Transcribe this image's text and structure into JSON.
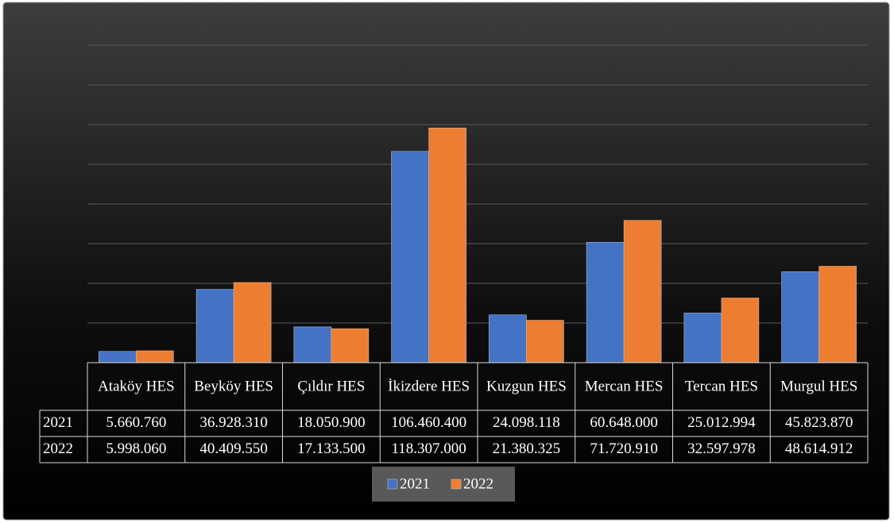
{
  "chart_data": {
    "type": "bar",
    "categories": [
      "Ataköy HES",
      "Beyköy HES",
      "Çıldır HES",
      "İkizdere HES",
      "Kuzgun HES",
      "Mercan HES",
      "Tercan HES",
      "Murgul HES"
    ],
    "series": [
      {
        "name": "2021",
        "color": "#4472c4",
        "values": [
          5660760,
          36928310,
          18050900,
          106460400,
          24098118,
          60648000,
          25012994,
          45823870
        ],
        "value_labels": [
          "5.660.760",
          "36.928.310",
          "18.050.900",
          "106.460.400",
          "24.098.118",
          "60.648.000",
          "25.012.994",
          "45.823.870"
        ]
      },
      {
        "name": "2022",
        "color": "#ed7d31",
        "values": [
          5998060,
          40409550,
          17133500,
          118307000,
          21380325,
          71720910,
          32597978,
          48614912
        ],
        "value_labels": [
          "5.998.060",
          "40.409.550",
          "17.133.500",
          "118.307.000",
          "21.380.325",
          "71.720.910",
          "32.597.978",
          "48.614.912"
        ]
      }
    ],
    "ylim": [
      0,
      160000000
    ],
    "yticks": [
      0,
      20000000,
      40000000,
      60000000,
      80000000,
      100000000,
      120000000,
      140000000,
      160000000
    ],
    "grid": true
  }
}
